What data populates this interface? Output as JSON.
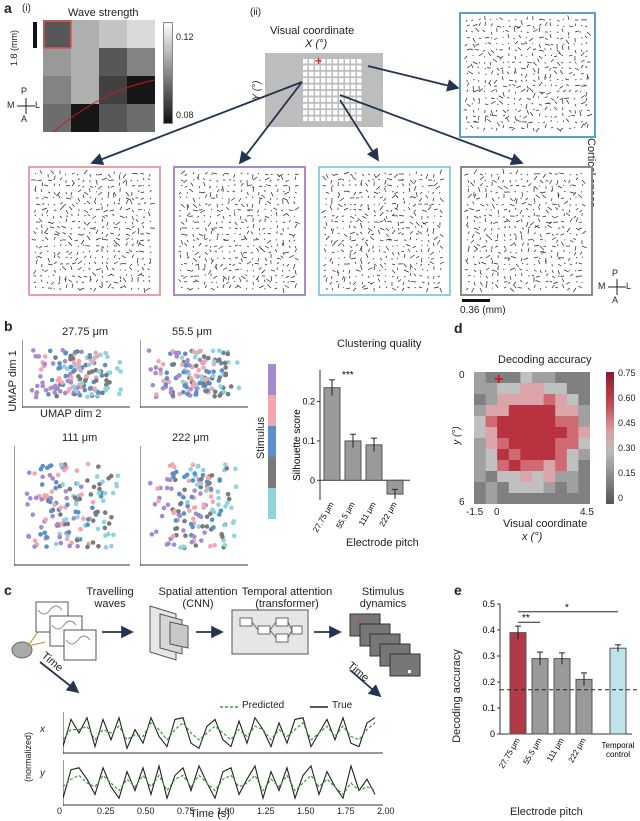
{
  "panel_labels": {
    "a": "a",
    "b": "b",
    "c": "c",
    "d": "d",
    "e": "e"
  },
  "panel_a": {
    "sub_i": "(i)",
    "sub_ii": "(ii)",
    "heatmap_title": "Wave strength",
    "scale_label": "1.8 (mm)",
    "colorbar_ticks": [
      "0.12",
      "0.08"
    ],
    "compass": {
      "p": "P",
      "a": "A",
      "m": "M",
      "l": "L"
    },
    "visual_title": "Visual coordinate",
    "x_axis": "X (°)",
    "y_axis": "Y (°)",
    "cortical_space": "Cortical space",
    "scale2": "0.36 (mm)",
    "box_colors": [
      "#e8a0a8",
      "#a58bd0",
      "#8fd0dc",
      "#8a8a8a",
      "#5aa0c8"
    ],
    "heatmap_values": [
      [
        0.09,
        0.11,
        0.115,
        0.12
      ],
      [
        0.105,
        0.11,
        0.09,
        0.1
      ],
      [
        0.1,
        0.11,
        0.085,
        0.075
      ],
      [
        0.095,
        0.075,
        0.09,
        0.095
      ]
    ]
  },
  "panel_b": {
    "umap_titles": [
      "27.75 μm",
      "55.5 μm",
      "111 μm",
      "222 μm"
    ],
    "umap_y": "UMAP dim 1",
    "umap_x": "UMAP dim 2",
    "stimulus": "Stimulus",
    "stimulus_colors": [
      "#a58bd0",
      "#f2a7b0",
      "#5b8fc7",
      "#7a7a7a",
      "#8fd3df"
    ],
    "bar_title": "Clustering quality",
    "bar_ylabel": "Silhouette score",
    "bar_xlabel": "Electrode pitch",
    "sig": "***"
  },
  "panel_c": {
    "stages": [
      "Travelling waves",
      "Spatial attention (CNN)",
      "Temporal attention (transformer)",
      "Stimulus dynamics"
    ],
    "time": "Time",
    "legend_pred": "Predicted",
    "legend_true": "True",
    "x_label": "x",
    "y_label": "y",
    "norm_label": "(normalized)",
    "time_axis": "Time (s)",
    "time_ticks": [
      "0",
      "0.25",
      "0.50",
      "0.75",
      "1.00",
      "1.25",
      "1.50",
      "1.75",
      "2.00"
    ]
  },
  "panel_d": {
    "title": "Decoding accuracy",
    "x_label": "Visual coordinate",
    "x_sub": "x (°)",
    "y_label": "y (°)",
    "x_ticks": [
      "-1.5",
      "0",
      "4.5"
    ],
    "y_ticks": [
      "0",
      "6"
    ],
    "colorbar_ticks": [
      "0.75",
      "0.60",
      "0.45",
      "0.30",
      "0.15",
      "0"
    ]
  },
  "panel_e": {
    "ylabel": "Decoding accuracy",
    "xlabel": "Electrode pitch",
    "sig1": "**",
    "sig2": "*",
    "control_label": "Temporal control"
  },
  "chart_data": [
    {
      "type": "bar",
      "title": "Clustering quality",
      "xlabel": "Electrode pitch",
      "ylabel": "Silhouette score",
      "categories": [
        "27.75 μm",
        "55.5 μm",
        "111 μm",
        "222 μm"
      ],
      "values": [
        0.235,
        0.1,
        0.09,
        -0.035
      ],
      "errors": [
        0.02,
        0.017,
        0.017,
        0.012
      ],
      "ylim": [
        -0.05,
        0.28
      ],
      "colors": [
        "#9a9a9a",
        "#9a9a9a",
        "#9a9a9a",
        "#9a9a9a"
      ]
    },
    {
      "type": "bar",
      "title": "",
      "xlabel": "Electrode pitch",
      "ylabel": "Decoding accuracy",
      "categories": [
        "27.75 μm",
        "55.5 μm",
        "111 μm",
        "222 μm",
        "Temporal control"
      ],
      "values": [
        0.39,
        0.29,
        0.29,
        0.21,
        0.33
      ],
      "errors": [
        0.025,
        0.025,
        0.022,
        0.025,
        0.013
      ],
      "ylim": [
        0,
        0.5
      ],
      "yticks": [
        "0",
        "0.1",
        "0.2",
        "0.3",
        "0.4",
        "0.5"
      ],
      "chance": 0.17,
      "colors": [
        "#b03a48",
        "#9a9a9a",
        "#9a9a9a",
        "#9a9a9a",
        "#bfe3ea"
      ]
    },
    {
      "type": "line",
      "title": "x",
      "x": [
        0,
        0.05,
        0.1,
        0.15,
        0.2,
        0.25,
        0.3,
        0.35,
        0.4,
        0.45,
        0.5,
        0.55,
        0.6,
        0.65,
        0.7,
        0.75,
        0.8,
        0.85,
        0.9,
        0.95,
        1.0,
        1.05,
        1.1,
        1.15,
        1.2,
        1.25,
        1.3,
        1.35,
        1.4,
        1.45,
        1.5,
        1.55,
        1.6,
        1.65,
        1.7,
        1.75,
        1.8,
        1.85,
        1.9,
        1.95
      ],
      "series": [
        {
          "name": "True",
          "values": [
            0.1,
            0.9,
            0.5,
            0.95,
            0.1,
            0.9,
            0.3,
            0.95,
            0.05,
            0.6,
            0.2,
            0.95,
            0.4,
            0.1,
            0.9,
            0.95,
            0.2,
            0.05,
            0.7,
            0.9,
            0.3,
            0.1,
            0.85,
            0.2,
            0.95,
            0.6,
            0.1,
            0.8,
            0.2,
            0.9,
            0.95,
            0.1,
            0.5,
            0.9,
            0.3,
            0.95,
            0.2,
            0.1,
            0.8,
            0.95
          ]
        },
        {
          "name": "Predicted",
          "values": [
            0.3,
            0.6,
            0.6,
            0.7,
            0.3,
            0.6,
            0.5,
            0.7,
            0.3,
            0.45,
            0.4,
            0.8,
            0.6,
            0.3,
            0.6,
            0.8,
            0.5,
            0.3,
            0.5,
            0.7,
            0.5,
            0.3,
            0.6,
            0.4,
            0.7,
            0.6,
            0.3,
            0.6,
            0.4,
            0.6,
            0.8,
            0.3,
            0.5,
            0.7,
            0.4,
            0.7,
            0.4,
            0.3,
            0.6,
            0.8
          ]
        }
      ],
      "xlim": [
        0,
        2.0
      ]
    },
    {
      "type": "line",
      "title": "y",
      "x": [
        0,
        0.05,
        0.1,
        0.15,
        0.2,
        0.25,
        0.3,
        0.35,
        0.4,
        0.45,
        0.5,
        0.55,
        0.6,
        0.65,
        0.7,
        0.75,
        0.8,
        0.85,
        0.9,
        0.95,
        1.0,
        1.05,
        1.1,
        1.15,
        1.2,
        1.25,
        1.3,
        1.35,
        1.4,
        1.45,
        1.5,
        1.55,
        1.6,
        1.65,
        1.7,
        1.75,
        1.8,
        1.85,
        1.9,
        1.95
      ],
      "series": [
        {
          "name": "True",
          "values": [
            0.1,
            0.85,
            0.9,
            0.6,
            0.2,
            0.9,
            0.4,
            0.1,
            0.8,
            0.3,
            0.9,
            0.2,
            0.95,
            0.1,
            0.7,
            0.9,
            0.3,
            0.95,
            0.5,
            0.1,
            0.8,
            0.9,
            0.2,
            0.6,
            0.95,
            0.1,
            0.8,
            0.3,
            0.9,
            0.1,
            0.7,
            0.95,
            0.2,
            0.8,
            0.4,
            0.1,
            0.95,
            0.3,
            0.6,
            0.2
          ]
        },
        {
          "name": "Predicted",
          "values": [
            0.4,
            0.6,
            0.7,
            0.5,
            0.4,
            0.7,
            0.5,
            0.3,
            0.6,
            0.4,
            0.7,
            0.4,
            0.7,
            0.3,
            0.6,
            0.7,
            0.4,
            0.7,
            0.5,
            0.3,
            0.6,
            0.7,
            0.4,
            0.5,
            0.7,
            0.3,
            0.6,
            0.4,
            0.7,
            0.3,
            0.5,
            0.7,
            0.4,
            0.6,
            0.4,
            0.2,
            0.5,
            0.3,
            0.4,
            0.3
          ]
        }
      ],
      "xlim": [
        0,
        2.0
      ]
    }
  ]
}
